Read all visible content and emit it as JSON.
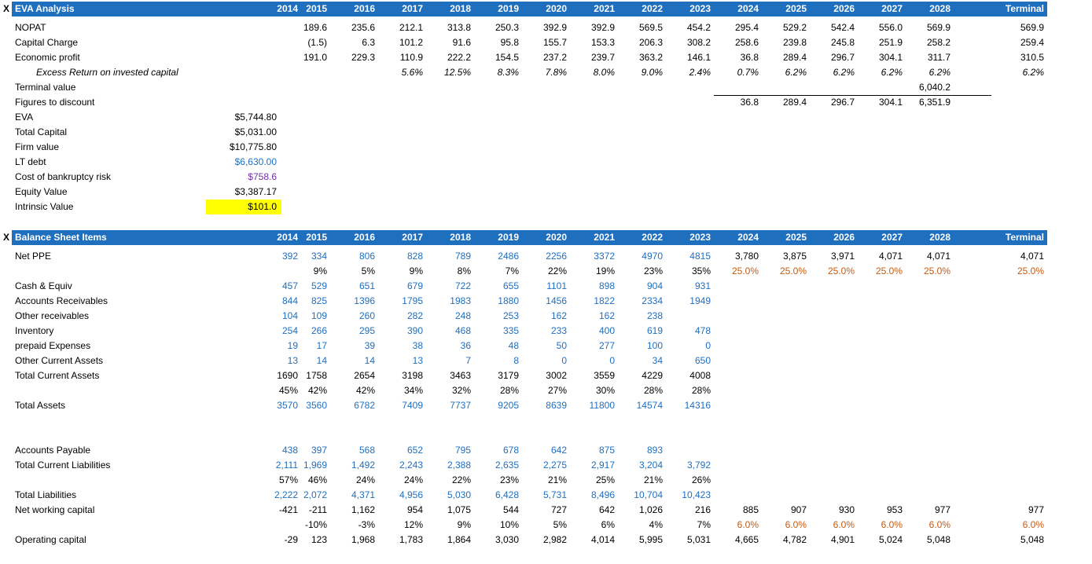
{
  "col_left": {
    "2014": 323,
    "2015": 360,
    "2016": 421,
    "2017": 482,
    "2018": 543,
    "2019": 604,
    "2020": 665,
    "2021": 726,
    "2022": 787,
    "2023": 848,
    "2024": 909,
    "2025": 970,
    "2026": 1031,
    "2027": 1092,
    "2028": 1153,
    "Terminal": 1214
  },
  "eva": {
    "marker": "X",
    "title": "EVA Analysis",
    "years": [
      "2014",
      "2015",
      "2016",
      "2017",
      "2018",
      "2019",
      "2020",
      "2021",
      "2022",
      "2023",
      "2024",
      "2025",
      "2026",
      "2027",
      "2028",
      "Terminal"
    ],
    "rows": [
      {
        "label": "NOPAT",
        "values": [
          "",
          "189.6",
          "235.6",
          "212.1",
          "313.8",
          "250.3",
          "392.9",
          "392.9",
          "569.5",
          "454.2",
          "295.4",
          "529.2",
          "542.4",
          "556.0",
          "569.9",
          "569.9"
        ]
      },
      {
        "label": "Capital Charge",
        "values": [
          "",
          "(1.5)",
          "6.3",
          "101.2",
          "91.6",
          "95.8",
          "155.7",
          "153.3",
          "206.3",
          "308.2",
          "258.6",
          "239.8",
          "245.8",
          "251.9",
          "258.2",
          "259.4"
        ]
      },
      {
        "label": "Economic profit",
        "values": [
          "",
          "191.0",
          "229.3",
          "110.9",
          "222.2",
          "154.5",
          "237.2",
          "239.7",
          "363.2",
          "146.1",
          "36.8",
          "289.4",
          "296.7",
          "304.1",
          "311.7",
          "310.5"
        ]
      },
      {
        "label": "Excess Return on invested capital",
        "indent": true,
        "italic": true,
        "values": [
          "",
          "",
          "",
          "5.6%",
          "12.5%",
          "8.3%",
          "7.8%",
          "8.0%",
          "9.0%",
          "2.4%",
          "0.7%",
          "6.2%",
          "6.2%",
          "6.2%",
          "6.2%",
          "6.2%"
        ]
      },
      {
        "label": "Terminal value",
        "values": [
          "",
          "",
          "",
          "",
          "",
          "",
          "",
          "",
          "",
          "",
          "",
          "",
          "",
          "",
          "6,040.2",
          ""
        ]
      },
      {
        "label": "Figures to discount",
        "values": [
          "",
          "",
          "",
          "",
          "",
          "",
          "",
          "",
          "",
          "",
          "36.8",
          "289.4",
          "296.7",
          "304.1",
          "6,351.9",
          ""
        ]
      },
      {
        "label": "EVA",
        "values": [
          "$5,744.80"
        ]
      },
      {
        "label": "Total Capital",
        "values": [
          "$5,031.00"
        ]
      },
      {
        "label": "Firm value",
        "values": [
          "$10,775.80"
        ]
      },
      {
        "label": "LT debt",
        "color": "blue",
        "values": [
          "$6,630.00"
        ]
      },
      {
        "label": "Cost of bankruptcy risk",
        "color": "purple",
        "values": [
          "$758.6"
        ]
      },
      {
        "label": "Equity Value",
        "values": [
          "$3,387.17"
        ]
      },
      {
        "label": "Intrinsic Value",
        "highlight": true,
        "values": [
          "$101.0"
        ]
      }
    ]
  },
  "bs": {
    "marker": "X",
    "title": "Balance Sheet Items",
    "years": [
      "2014",
      "2015",
      "2016",
      "2017",
      "2018",
      "2019",
      "2020",
      "2021",
      "2022",
      "2023",
      "2024",
      "2025",
      "2026",
      "2027",
      "2028",
      "Terminal"
    ],
    "rows": [
      {
        "label": "Net PPE",
        "color": "blue",
        "values": [
          "392",
          "334",
          "806",
          "828",
          "789",
          "2486",
          "2256",
          "3372",
          "4970",
          "4815",
          "3,780",
          "3,875",
          "3,971",
          "4,071",
          "4,071",
          "4,071"
        ],
        "proj_color": "black"
      },
      {
        "label": "",
        "values": [
          "",
          "9%",
          "5%",
          "9%",
          "8%",
          "7%",
          "22%",
          "19%",
          "23%",
          "35%",
          "25.0%",
          "25.0%",
          "25.0%",
          "25.0%",
          "25.0%",
          "25.0%"
        ],
        "proj_color": "orange"
      },
      {
        "label": "Cash & Equiv",
        "color": "blue",
        "values": [
          "457",
          "529",
          "651",
          "679",
          "722",
          "655",
          "1101",
          "898",
          "904",
          "931"
        ]
      },
      {
        "label": "Accounts Receivables",
        "color": "blue",
        "values": [
          "844",
          "825",
          "1396",
          "1795",
          "1983",
          "1880",
          "1456",
          "1822",
          "2334",
          "1949"
        ]
      },
      {
        "label": "Other receivables",
        "color": "blue",
        "values": [
          "104",
          "109",
          "260",
          "282",
          "248",
          "253",
          "162",
          "162",
          "238",
          ""
        ]
      },
      {
        "label": "Inventory",
        "color": "blue",
        "values": [
          "254",
          "266",
          "295",
          "390",
          "468",
          "335",
          "233",
          "400",
          "619",
          "478"
        ]
      },
      {
        "label": "prepaid Expenses",
        "color": "blue",
        "values": [
          "19",
          "17",
          "39",
          "38",
          "36",
          "48",
          "50",
          "277",
          "100",
          "0"
        ]
      },
      {
        "label": "Other Current Assets",
        "color": "blue",
        "values": [
          "13",
          "14",
          "14",
          "13",
          "7",
          "8",
          "0",
          "0",
          "34",
          "650"
        ]
      },
      {
        "label": "Total Current Assets",
        "values": [
          "1690",
          "1758",
          "2654",
          "3198",
          "3463",
          "3179",
          "3002",
          "3559",
          "4229",
          "4008"
        ]
      },
      {
        "label": "",
        "values": [
          "45%",
          "42%",
          "42%",
          "34%",
          "32%",
          "28%",
          "27%",
          "30%",
          "28%",
          "28%"
        ]
      },
      {
        "label": "Total Assets",
        "color": "blue",
        "values": [
          "3570",
          "3560",
          "6782",
          "7409",
          "7737",
          "9205",
          "8639",
          "11800",
          "14574",
          "14316"
        ]
      },
      {
        "label": "",
        "values": []
      },
      {
        "label": "",
        "values": []
      },
      {
        "label": "Accounts Payable",
        "color": "blue",
        "values": [
          "438",
          "397",
          "568",
          "652",
          "795",
          "678",
          "642",
          "875",
          "893",
          ""
        ]
      },
      {
        "label": "Total Current Liabilities",
        "color": "blue",
        "values": [
          "2,111",
          "1,969",
          "1,492",
          "2,243",
          "2,388",
          "2,635",
          "2,275",
          "2,917",
          "3,204",
          "3,792"
        ]
      },
      {
        "label": "",
        "values": [
          "57%",
          "46%",
          "24%",
          "24%",
          "22%",
          "23%",
          "21%",
          "25%",
          "21%",
          "26%"
        ]
      },
      {
        "label": "Total Liabilities",
        "color": "blue",
        "values": [
          "2,222",
          "2,072",
          "4,371",
          "4,956",
          "5,030",
          "6,428",
          "5,731",
          "8,496",
          "10,704",
          "10,423"
        ]
      },
      {
        "label": "Net working capital",
        "values": [
          "-421",
          "-211",
          "1,162",
          "954",
          "1,075",
          "544",
          "727",
          "642",
          "1,026",
          "216",
          "885",
          "907",
          "930",
          "953",
          "977",
          "977"
        ]
      },
      {
        "label": "",
        "values": [
          "",
          "-10%",
          "-3%",
          "12%",
          "9%",
          "10%",
          "5%",
          "6%",
          "4%",
          "7%",
          "6.0%",
          "6.0%",
          "6.0%",
          "6.0%",
          "6.0%",
          "6.0%"
        ],
        "proj_color": "orange"
      },
      {
        "label": "Operating capital",
        "values": [
          "-29",
          "123",
          "1,968",
          "1,783",
          "1,864",
          "3,030",
          "2,982",
          "4,014",
          "5,995",
          "5,031",
          "4,665",
          "4,782",
          "4,901",
          "5,024",
          "5,048",
          "5,048"
        ]
      }
    ]
  }
}
